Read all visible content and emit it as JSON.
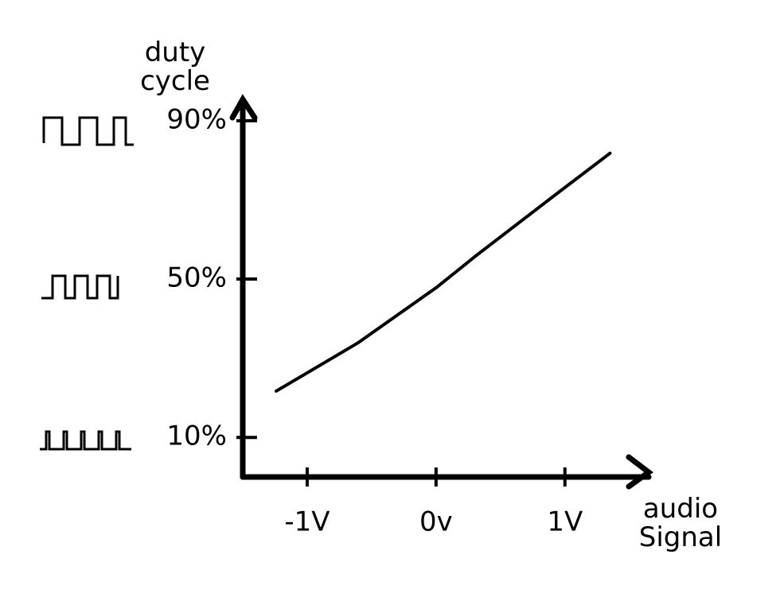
{
  "chart_data": {
    "type": "line",
    "y_label": "duty cycle",
    "x_label": "audio Signal",
    "x": [
      -1.24,
      -0.61,
      0.0,
      0.31,
      0.93,
      1.35
    ],
    "values": [
      21.7,
      33.8,
      47.8,
      55.9,
      71.4,
      81.8
    ],
    "color": "#000000",
    "xlim": [
      -1.5,
      1.65
    ],
    "ylim": [
      0,
      95
    ],
    "xticks": [
      {
        "value": -1,
        "label": "-1V"
      },
      {
        "value": 0,
        "label": "0v"
      },
      {
        "value": 1,
        "label": "1V"
      }
    ],
    "yticks": [
      {
        "value": 10,
        "label": "10%"
      },
      {
        "value": 50,
        "label": "50%"
      },
      {
        "value": 90,
        "label": "90%"
      }
    ]
  }
}
